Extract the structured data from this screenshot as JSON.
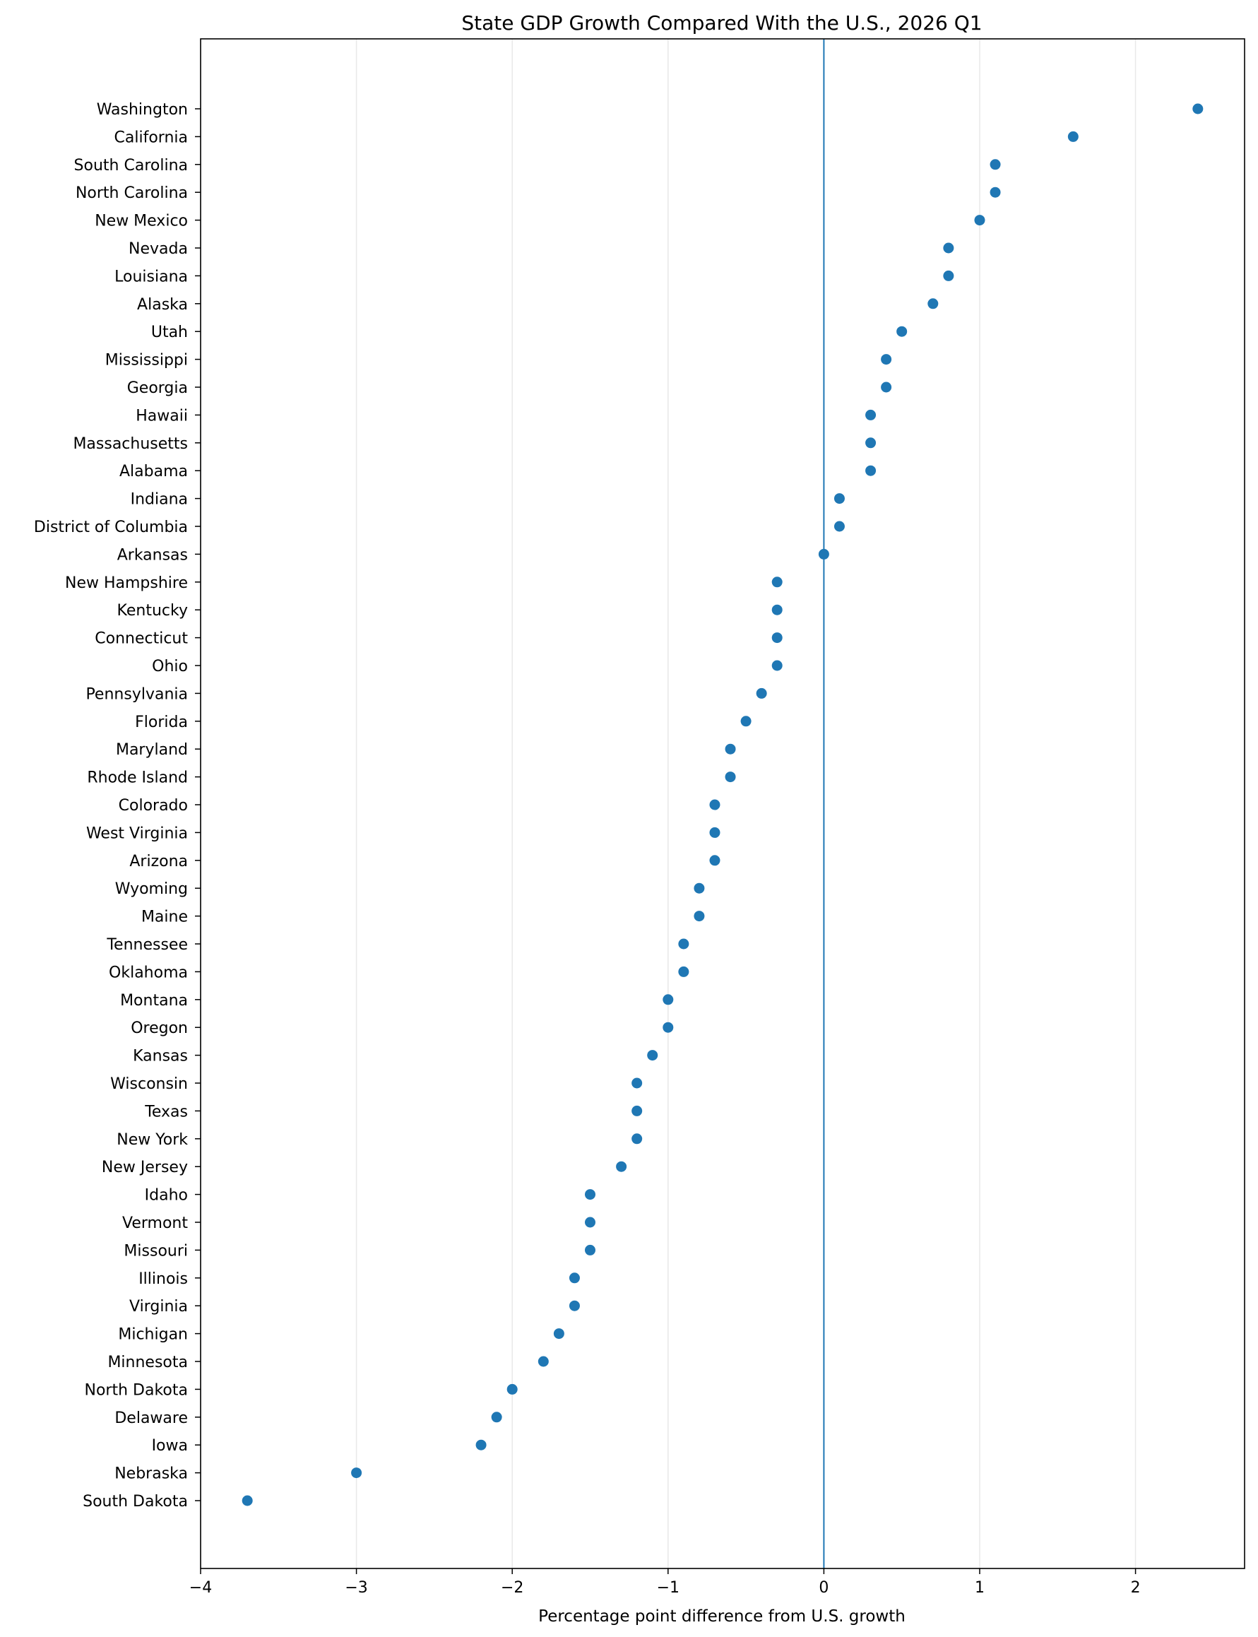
{
  "chart_data": {
    "type": "scatter",
    "title": "State GDP Growth Compared With the U.S., 2026 Q1",
    "xlabel": "Percentage point difference from U.S. growth",
    "ylabel": "",
    "xlim": [
      -4,
      2.7
    ],
    "xticks": [
      -4,
      -3,
      -2,
      -1,
      0,
      1,
      2
    ],
    "xtick_labels": [
      "−4",
      "−3",
      "−2",
      "−1",
      "0",
      "1",
      "2"
    ],
    "grid": "vertical",
    "reference_line": 0,
    "colors": {
      "point": "#1f77b4",
      "reference_line": "#1f77b4",
      "grid": "#e8e8e8"
    },
    "points": [
      {
        "category": "Washington",
        "value": 2.4
      },
      {
        "category": "California",
        "value": 1.6
      },
      {
        "category": "South Carolina",
        "value": 1.1
      },
      {
        "category": "North Carolina",
        "value": 1.1
      },
      {
        "category": "New Mexico",
        "value": 1.0
      },
      {
        "category": "Nevada",
        "value": 0.8
      },
      {
        "category": "Louisiana",
        "value": 0.8
      },
      {
        "category": "Alaska",
        "value": 0.7
      },
      {
        "category": "Utah",
        "value": 0.5
      },
      {
        "category": "Mississippi",
        "value": 0.4
      },
      {
        "category": "Georgia",
        "value": 0.4
      },
      {
        "category": "Hawaii",
        "value": 0.3
      },
      {
        "category": "Massachusetts",
        "value": 0.3
      },
      {
        "category": "Alabama",
        "value": 0.3
      },
      {
        "category": "Indiana",
        "value": 0.1
      },
      {
        "category": "District of Columbia",
        "value": 0.1
      },
      {
        "category": "Arkansas",
        "value": 0.0
      },
      {
        "category": "New Hampshire",
        "value": -0.3
      },
      {
        "category": "Kentucky",
        "value": -0.3
      },
      {
        "category": "Connecticut",
        "value": -0.3
      },
      {
        "category": "Ohio",
        "value": -0.3
      },
      {
        "category": "Pennsylvania",
        "value": -0.4
      },
      {
        "category": "Florida",
        "value": -0.5
      },
      {
        "category": "Maryland",
        "value": -0.6
      },
      {
        "category": "Rhode Island",
        "value": -0.6
      },
      {
        "category": "Colorado",
        "value": -0.7
      },
      {
        "category": "West Virginia",
        "value": -0.7
      },
      {
        "category": "Arizona",
        "value": -0.7
      },
      {
        "category": "Wyoming",
        "value": -0.8
      },
      {
        "category": "Maine",
        "value": -0.8
      },
      {
        "category": "Tennessee",
        "value": -0.9
      },
      {
        "category": "Oklahoma",
        "value": -0.9
      },
      {
        "category": "Montana",
        "value": -1.0
      },
      {
        "category": "Oregon",
        "value": -1.0
      },
      {
        "category": "Kansas",
        "value": -1.1
      },
      {
        "category": "Wisconsin",
        "value": -1.2
      },
      {
        "category": "Texas",
        "value": -1.2
      },
      {
        "category": "New York",
        "value": -1.2
      },
      {
        "category": "New Jersey",
        "value": -1.3
      },
      {
        "category": "Idaho",
        "value": -1.5
      },
      {
        "category": "Vermont",
        "value": -1.5
      },
      {
        "category": "Missouri",
        "value": -1.5
      },
      {
        "category": "Illinois",
        "value": -1.6
      },
      {
        "category": "Virginia",
        "value": -1.6
      },
      {
        "category": "Michigan",
        "value": -1.7
      },
      {
        "category": "Minnesota",
        "value": -1.8
      },
      {
        "category": "North Dakota",
        "value": -2.0
      },
      {
        "category": "Delaware",
        "value": -2.1
      },
      {
        "category": "Iowa",
        "value": -2.2
      },
      {
        "category": "Nebraska",
        "value": -3.0
      },
      {
        "category": "South Dakota",
        "value": -3.7
      }
    ]
  }
}
